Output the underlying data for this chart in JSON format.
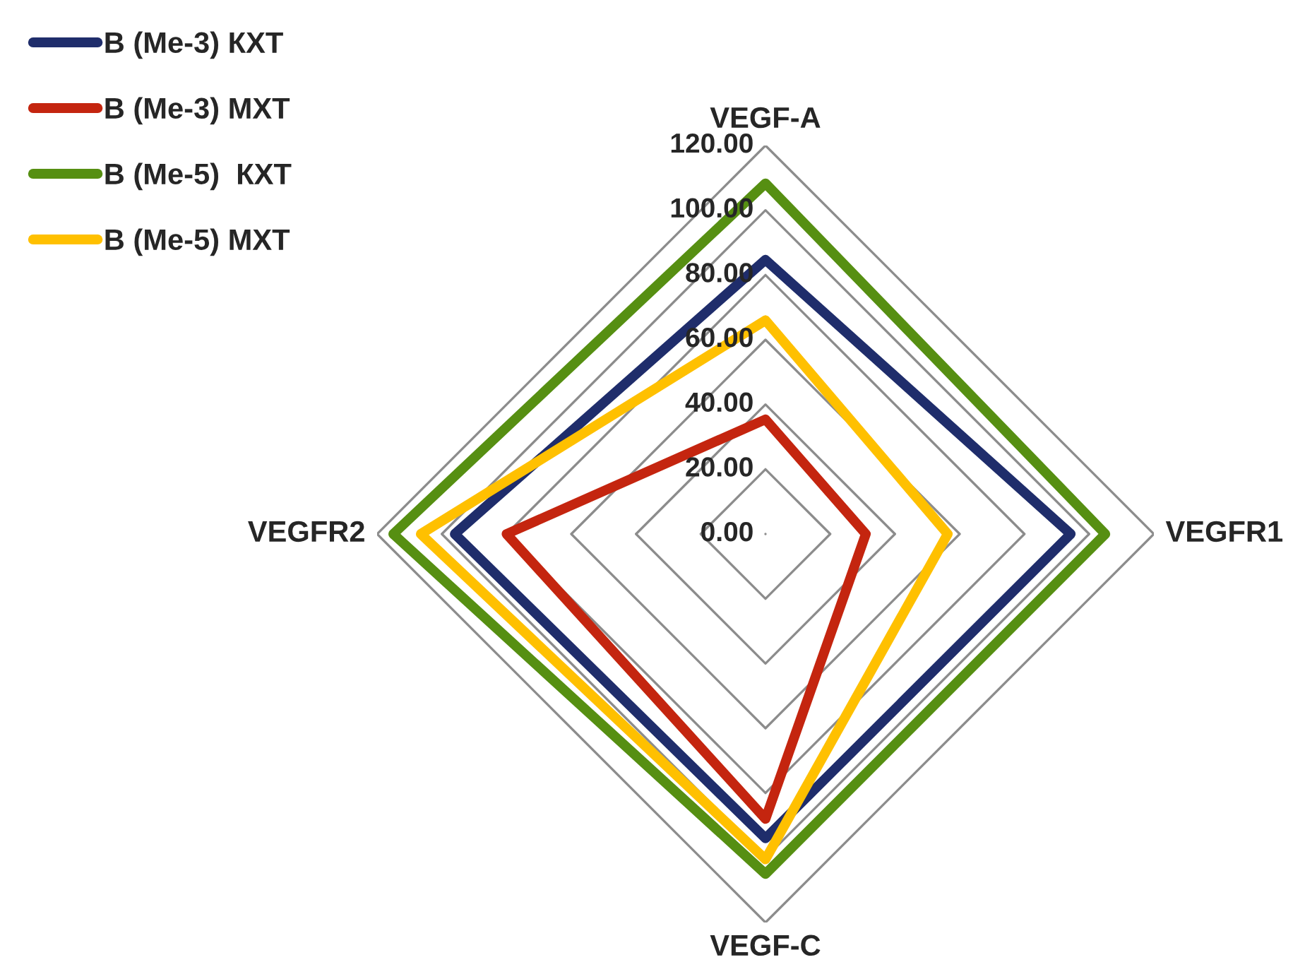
{
  "chart_data": {
    "type": "radar",
    "categories": [
      "VEGF-A",
      "VEGFR1",
      "VEGF-C",
      "VEGFR2"
    ],
    "series": [
      {
        "name": "В (Ме-3) КХТ",
        "color": "#1f2d6b",
        "values": [
          84.7,
          94.3,
          94,
          96
        ]
      },
      {
        "name": "В (Ме-3) МХТ",
        "color": "#c4250f",
        "values": [
          35.4,
          31,
          88,
          80
        ]
      },
      {
        "name": "В (Ме-5)  КХТ",
        "color": "#568f12",
        "values": [
          108.3,
          105,
          105,
          115
        ]
      },
      {
        "name": "В (Ме-5) МХТ",
        "color": "#ffc000",
        "values": [
          66,
          56.3,
          100.5,
          106.5
        ]
      }
    ],
    "ylim": [
      0,
      120
    ],
    "yticks": [
      {
        "value": 0,
        "label": "0.00"
      },
      {
        "value": 20,
        "label": "20.00"
      },
      {
        "value": 40,
        "label": "40.00"
      },
      {
        "value": 60,
        "label": "60.00"
      },
      {
        "value": 80,
        "label": "80.00"
      },
      {
        "value": 100,
        "label": "100.00"
      },
      {
        "value": 120,
        "label": "120.00"
      }
    ],
    "legend": "top left",
    "grid": true,
    "marker": "none",
    "line_style": "solid"
  }
}
